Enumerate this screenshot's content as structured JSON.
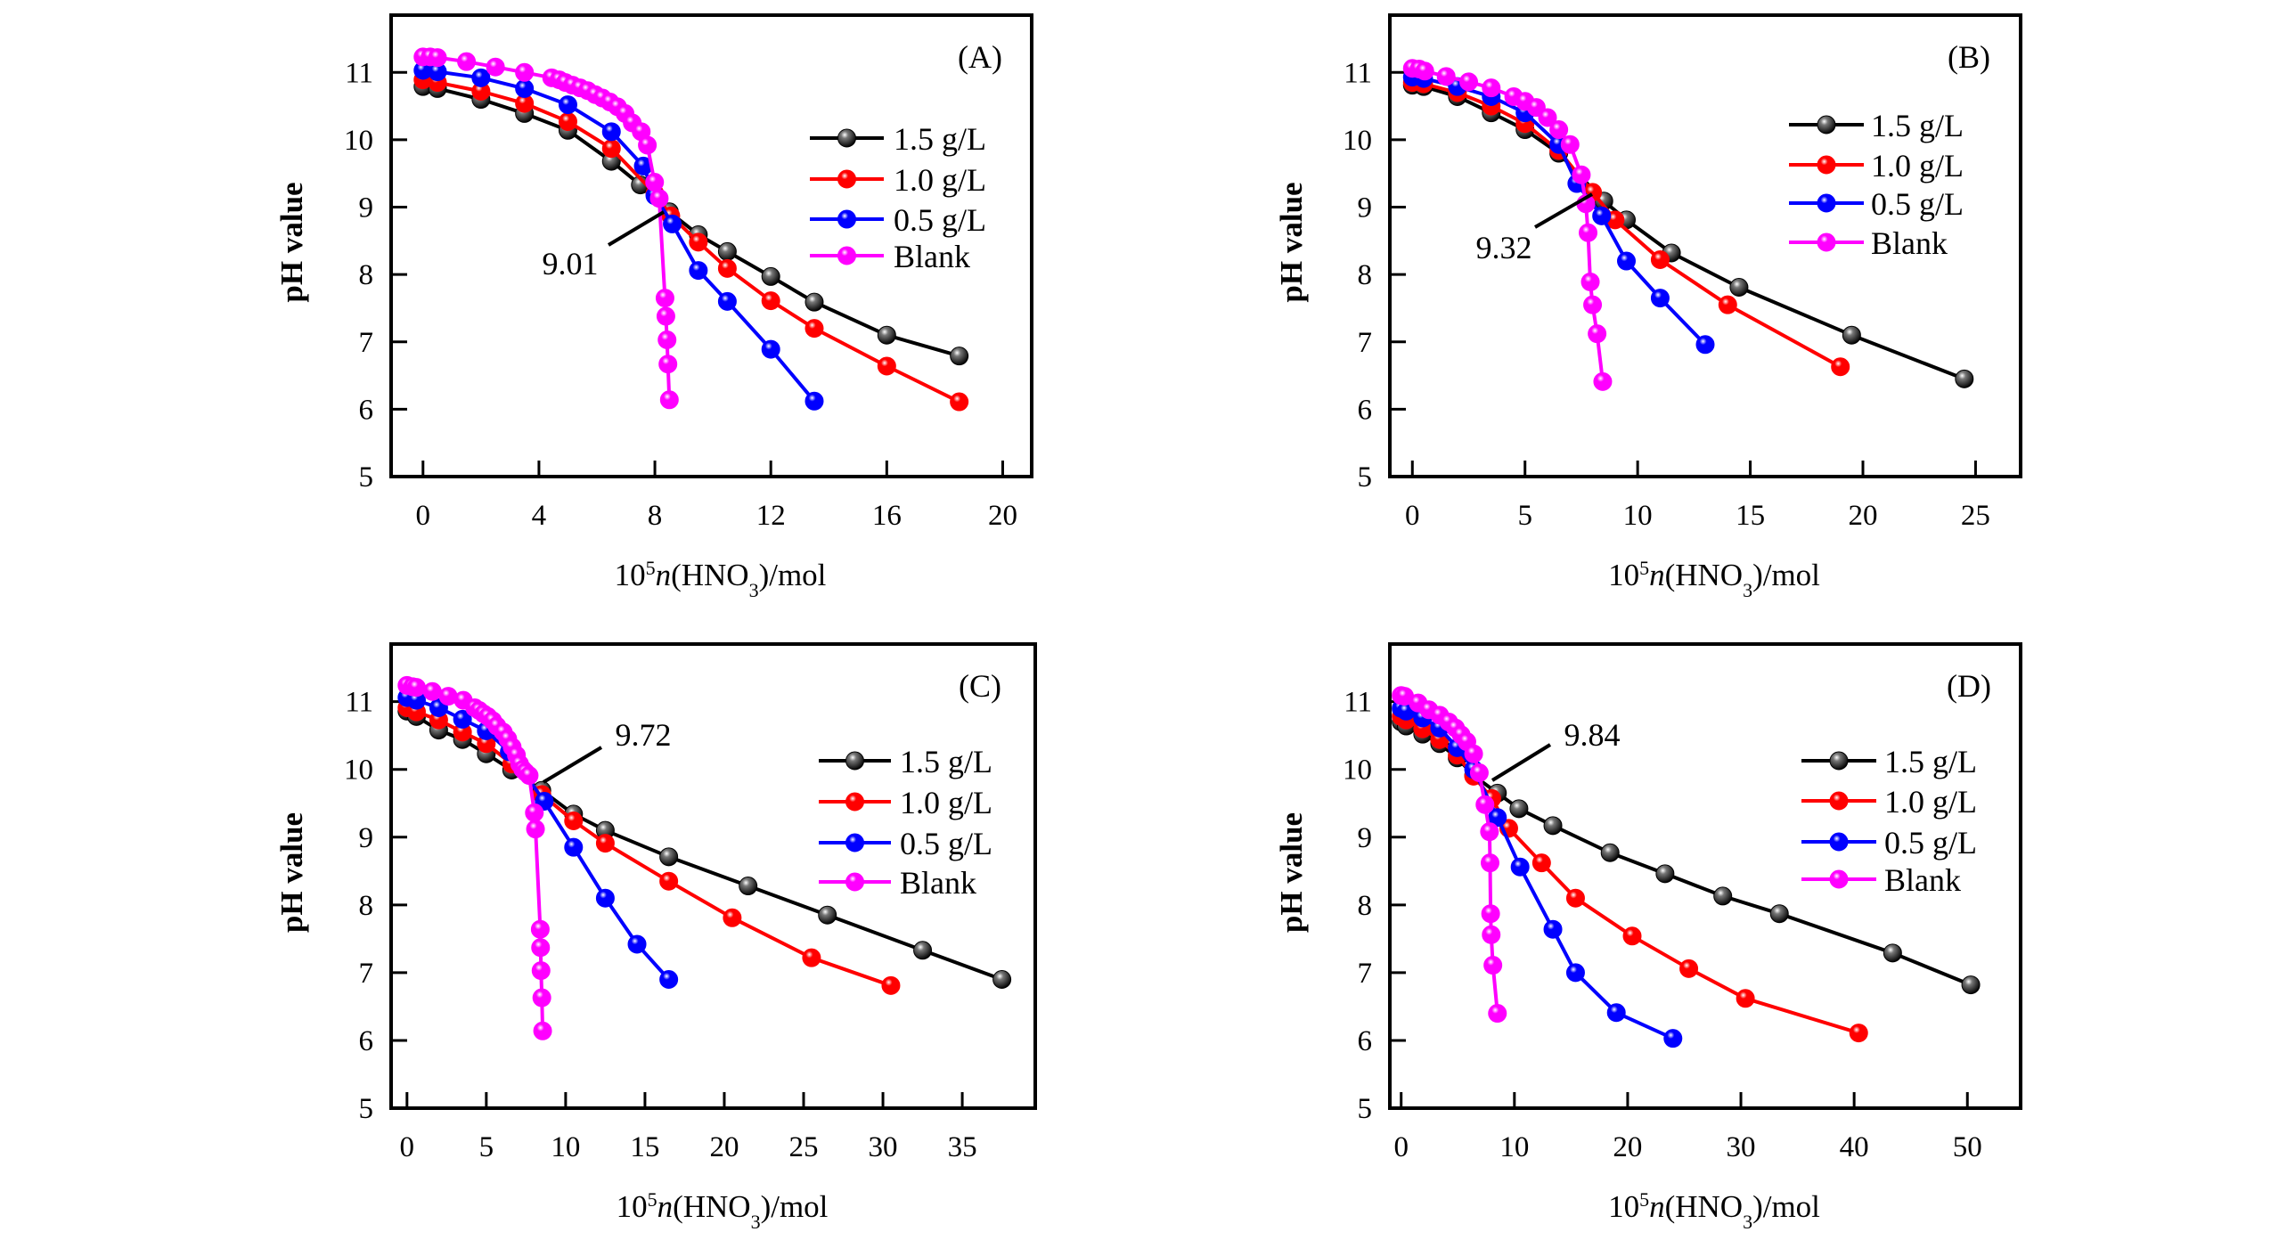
{
  "figure": {
    "series_colors": {
      "1.5 g/L": "#000000",
      "1.0 g/L": "#ff0000",
      "0.5 g/L": "#0000ff",
      "Blank": "#ff00ff"
    }
  },
  "chart_data": [
    {
      "type": "line",
      "panel_label": "(A)",
      "xlabel": "10^5 n(HNO3)/mol",
      "ylabel": "pH value",
      "xlim": [
        -1.1,
        21.0
      ],
      "ylim": [
        5,
        11.85
      ],
      "xticks": [
        0,
        4,
        8,
        12,
        16,
        20
      ],
      "yticks": [
        5,
        6,
        7,
        8,
        9,
        10,
        11
      ],
      "legend": [
        "1.5 g/L",
        "1.0 g/L",
        "0.5 g/L",
        "Blank"
      ],
      "legend_position": "right-middle",
      "annotation": {
        "text": "9.01",
        "x": 8.3,
        "y": 9.01
      },
      "series": [
        {
          "name": "1.5 g/L",
          "x": [
            0,
            0.5,
            2.0,
            3.5,
            5.0,
            6.5,
            7.5,
            8.5,
            9.5,
            10.5,
            12.0,
            13.5,
            16.0,
            18.5
          ],
          "y": [
            10.79,
            10.76,
            10.6,
            10.39,
            10.14,
            9.68,
            9.33,
            8.93,
            8.59,
            8.34,
            7.97,
            7.59,
            7.1,
            6.79
          ]
        },
        {
          "name": "1.0 g/L",
          "x": [
            0,
            0.5,
            2.0,
            3.5,
            5.0,
            6.5,
            8.0,
            8.55,
            9.5,
            10.5,
            12.0,
            13.5,
            16.0,
            18.5
          ],
          "y": [
            10.89,
            10.85,
            10.72,
            10.54,
            10.27,
            9.87,
            9.2,
            8.87,
            8.48,
            8.09,
            7.61,
            7.2,
            6.64,
            6.11
          ]
        },
        {
          "name": "0.5 g/L",
          "x": [
            0,
            0.5,
            2.0,
            3.5,
            5.0,
            6.5,
            7.6,
            8.0,
            8.6,
            9.5,
            10.5,
            12.0,
            13.5
          ],
          "y": [
            11.03,
            11.01,
            10.92,
            10.76,
            10.52,
            10.12,
            9.61,
            9.17,
            8.75,
            8.06,
            7.6,
            6.89,
            6.12
          ]
        },
        {
          "name": "Blank",
          "x": [
            0,
            0.25,
            0.5,
            1.5,
            2.5,
            3.5,
            4.44,
            4.7,
            4.91,
            5.16,
            5.42,
            5.68,
            5.94,
            6.19,
            6.45,
            6.71,
            6.97,
            7.22,
            7.53,
            7.74,
            7.99,
            8.15,
            8.35,
            8.38,
            8.42,
            8.45,
            8.5
          ],
          "y": [
            11.23,
            11.23,
            11.22,
            11.16,
            11.08,
            11.0,
            10.92,
            10.89,
            10.85,
            10.81,
            10.77,
            10.73,
            10.67,
            10.62,
            10.56,
            10.49,
            10.39,
            10.25,
            10.12,
            9.92,
            9.37,
            9.13,
            7.65,
            7.38,
            7.03,
            6.67,
            6.14
          ]
        }
      ]
    },
    {
      "type": "line",
      "panel_label": "(B)",
      "xlabel": "10^5 n(HNO3)/mol",
      "ylabel": "pH value",
      "xlim": [
        -1.0,
        27.0
      ],
      "ylim": [
        5,
        11.85
      ],
      "xticks": [
        0,
        5,
        10,
        15,
        20,
        25
      ],
      "yticks": [
        5,
        6,
        7,
        8,
        9,
        10,
        11
      ],
      "legend": [
        "1.5 g/L",
        "1.0 g/L",
        "0.5 g/L",
        "Blank"
      ],
      "legend_position": "right-middle",
      "annotation": {
        "text": "9.32",
        "x": 8.0,
        "y": 9.32
      },
      "series": [
        {
          "name": "1.5 g/L",
          "x": [
            0,
            0.5,
            2.0,
            3.5,
            5.0,
            6.5,
            8.5,
            9.5,
            11.5,
            14.5,
            19.5,
            24.5
          ],
          "y": [
            10.81,
            10.79,
            10.64,
            10.4,
            10.15,
            9.8,
            9.09,
            8.81,
            8.32,
            7.81,
            7.1,
            6.45
          ]
        },
        {
          "name": "1.0 g/L",
          "x": [
            0,
            0.5,
            2.0,
            3.5,
            5.0,
            6.5,
            8.0,
            9.0,
            11.0,
            14.0,
            19.0
          ],
          "y": [
            10.85,
            10.83,
            10.7,
            10.5,
            10.24,
            9.84,
            9.22,
            8.81,
            8.22,
            7.55,
            6.63
          ]
        },
        {
          "name": "0.5 g/L",
          "x": [
            0,
            0.5,
            2.0,
            3.5,
            5.0,
            6.5,
            7.3,
            8.4,
            9.5,
            11.0,
            13.0
          ],
          "y": [
            10.93,
            10.91,
            10.79,
            10.64,
            10.4,
            9.93,
            9.35,
            8.87,
            8.2,
            7.65,
            6.96
          ]
        },
        {
          "name": "Blank",
          "x": [
            0,
            0.3,
            0.55,
            1.5,
            2.5,
            3.5,
            4.5,
            5.0,
            5.5,
            6.0,
            6.5,
            7.0,
            7.5,
            7.7,
            7.8,
            7.9,
            8.0,
            8.2,
            8.45
          ],
          "y": [
            11.06,
            11.05,
            11.02,
            10.94,
            10.86,
            10.77,
            10.64,
            10.57,
            10.48,
            10.33,
            10.15,
            9.93,
            9.48,
            9.05,
            8.62,
            7.89,
            7.55,
            7.12,
            6.41
          ]
        }
      ]
    },
    {
      "type": "line",
      "panel_label": "(C)",
      "xlabel": "10^5 n(HNO3)/mol",
      "ylabel": "pH value",
      "xlim": [
        -1.0,
        39.6
      ],
      "ylim": [
        5,
        11.85
      ],
      "xticks": [
        0,
        5,
        10,
        15,
        20,
        25,
        30,
        35
      ],
      "yticks": [
        5,
        6,
        7,
        8,
        9,
        10,
        11
      ],
      "legend": [
        "1.5 g/L",
        "1.0 g/L",
        "0.5 g/L",
        "Blank"
      ],
      "legend_position": "right-middle",
      "annotation": {
        "text": "9.72",
        "x": 8.0,
        "y": 9.72
      },
      "series": [
        {
          "name": "1.5 g/L",
          "x": [
            0,
            0.6,
            2.0,
            3.5,
            5.0,
            6.6,
            8.5,
            10.5,
            12.5,
            16.5,
            21.5,
            26.5,
            32.5,
            37.5
          ],
          "y": [
            10.86,
            10.78,
            10.58,
            10.44,
            10.23,
            9.99,
            9.69,
            9.34,
            9.1,
            8.71,
            8.28,
            7.85,
            7.33,
            6.9
          ]
        },
        {
          "name": "1.0 g/L",
          "x": [
            0,
            0.6,
            2.0,
            3.5,
            5.0,
            6.6,
            8.5,
            10.5,
            12.5,
            16.5,
            20.5,
            25.5,
            30.5
          ],
          "y": [
            10.91,
            10.85,
            10.73,
            10.55,
            10.38,
            10.08,
            9.63,
            9.24,
            8.91,
            8.35,
            7.81,
            7.22,
            6.81
          ]
        },
        {
          "name": "0.5 g/L",
          "x": [
            0,
            0.6,
            2.0,
            3.5,
            5.0,
            6.45,
            8.65,
            10.5,
            12.5,
            14.5,
            16.5
          ],
          "y": [
            11.06,
            11.02,
            10.91,
            10.74,
            10.57,
            10.26,
            9.53,
            8.85,
            8.1,
            7.42,
            6.9
          ]
        },
        {
          "name": "Blank",
          "x": [
            0,
            0.35,
            0.6,
            1.6,
            2.6,
            3.55,
            4.27,
            4.55,
            4.83,
            5.1,
            5.4,
            5.67,
            6.07,
            6.35,
            6.63,
            6.9,
            7.1,
            7.3,
            7.47,
            7.7,
            8.03,
            8.1,
            8.4,
            8.42,
            8.45,
            8.5,
            8.55
          ],
          "y": [
            11.24,
            11.22,
            11.21,
            11.15,
            11.08,
            11.02,
            10.91,
            10.87,
            10.82,
            10.78,
            10.72,
            10.64,
            10.55,
            10.45,
            10.33,
            10.21,
            10.08,
            10.0,
            9.96,
            9.91,
            9.36,
            9.12,
            7.64,
            7.37,
            7.03,
            6.63,
            6.14
          ]
        }
      ]
    },
    {
      "type": "line",
      "panel_label": "(D)",
      "xlabel": "10^5 n(HNO3)/mol",
      "ylabel": "pH value",
      "xlim": [
        -1.0,
        54.7
      ],
      "ylim": [
        5,
        11.85
      ],
      "xticks": [
        0,
        10,
        20,
        30,
        40,
        50
      ],
      "yticks": [
        5,
        6,
        7,
        8,
        9,
        10,
        11
      ],
      "legend": [
        "1.5 g/L",
        "1.0 g/L",
        "0.5 g/L",
        "Blank"
      ],
      "legend_position": "right-middle",
      "annotation": {
        "text": "9.84",
        "x": 7.0,
        "y": 9.84
      },
      "series": [
        {
          "name": "1.5 g/L",
          "x": [
            0,
            0.45,
            1.9,
            3.4,
            4.95,
            6.4,
            8.5,
            10.4,
            13.4,
            18.45,
            23.3,
            28.4,
            33.4,
            43.4,
            50.3
          ],
          "y": [
            10.7,
            10.64,
            10.52,
            10.38,
            10.17,
            9.91,
            9.65,
            9.42,
            9.17,
            8.77,
            8.46,
            8.13,
            7.87,
            7.29,
            6.82
          ]
        },
        {
          "name": "1.0 g/L",
          "x": [
            0,
            0.45,
            1.9,
            3.4,
            4.95,
            6.4,
            8.0,
            9.5,
            12.4,
            15.4,
            20.4,
            25.4,
            30.4,
            40.4
          ],
          "y": [
            10.78,
            10.73,
            10.6,
            10.44,
            10.21,
            9.9,
            9.57,
            9.13,
            8.62,
            8.1,
            7.54,
            7.06,
            6.62,
            6.11
          ]
        },
        {
          "name": "0.5 g/L",
          "x": [
            0,
            0.45,
            1.9,
            3.4,
            4.95,
            6.4,
            8.5,
            10.5,
            13.4,
            15.4,
            19.0,
            24.0
          ],
          "y": [
            10.9,
            10.86,
            10.76,
            10.61,
            10.32,
            10.0,
            9.29,
            8.56,
            7.64,
            7.0,
            6.41,
            6.03
          ]
        },
        {
          "name": "Blank",
          "x": [
            0,
            0.3,
            1.5,
            2.45,
            3.4,
            4.2,
            4.8,
            5.3,
            5.8,
            6.4,
            6.9,
            7.4,
            7.8,
            7.85,
            7.9,
            7.95,
            8.1,
            8.5
          ],
          "y": [
            11.09,
            11.08,
            10.98,
            10.88,
            10.8,
            10.7,
            10.61,
            10.51,
            10.41,
            10.23,
            9.95,
            9.48,
            9.08,
            8.62,
            7.87,
            7.56,
            7.11,
            6.4
          ]
        }
      ]
    }
  ]
}
